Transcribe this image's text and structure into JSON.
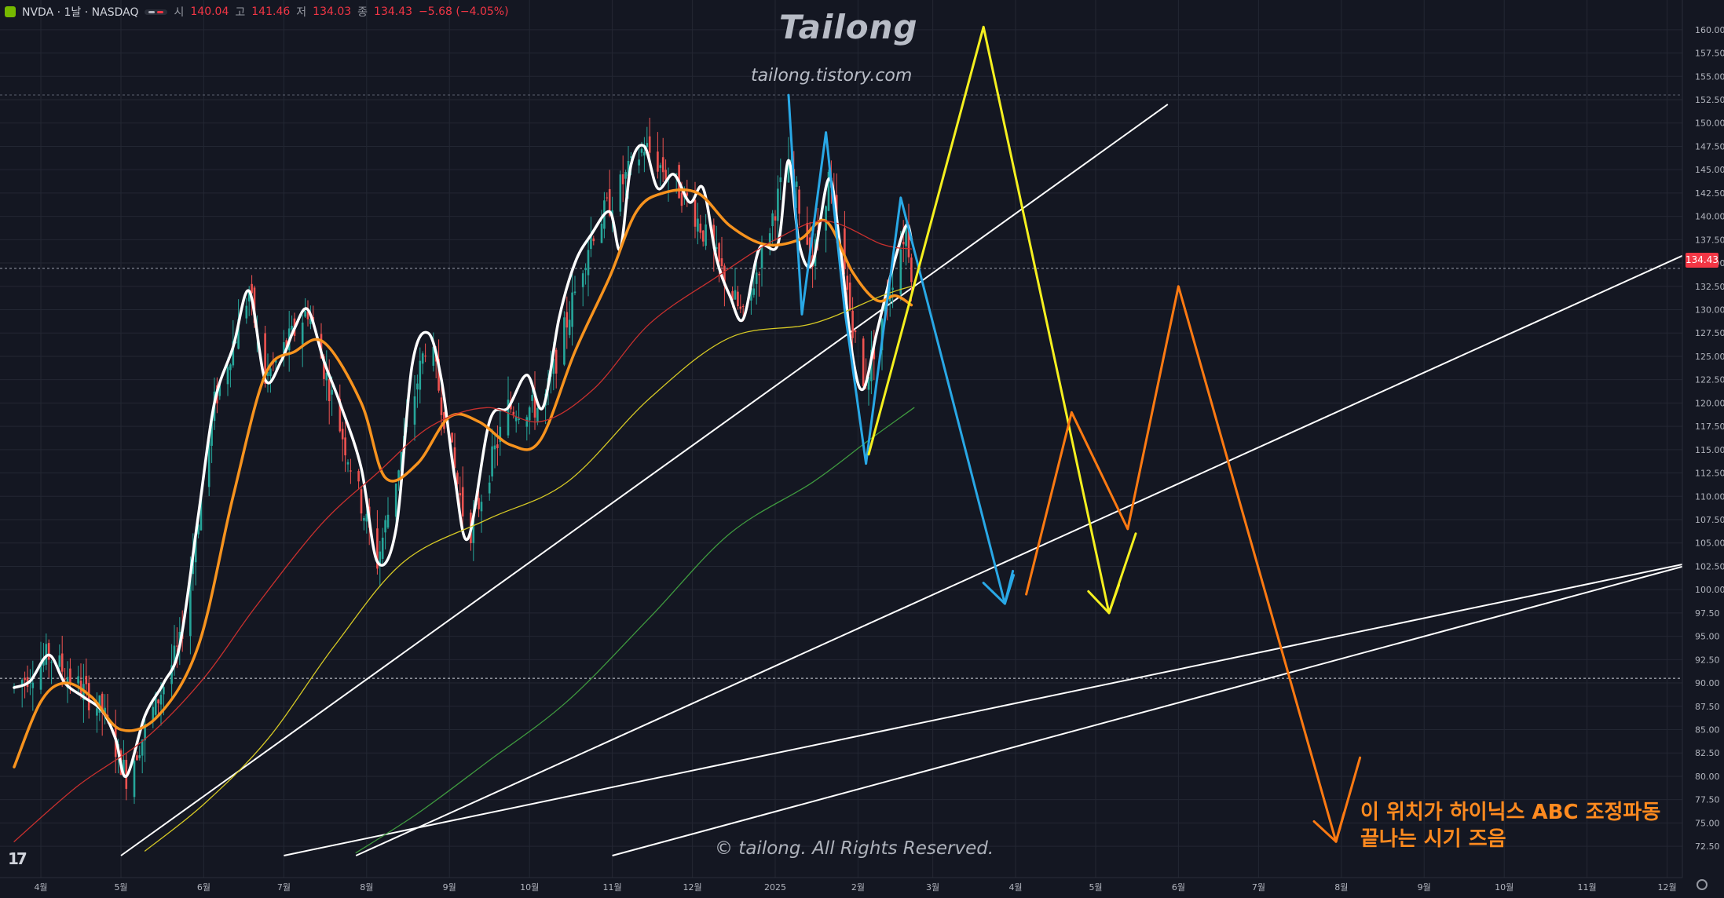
{
  "header": {
    "symbol": "NVDA · 1날 · NASDAQ",
    "o_label": "시",
    "o_value": "140.04",
    "h_label": "고",
    "h_value": "141.46",
    "l_label": "저",
    "l_value": "134.03",
    "c_label": "종",
    "c_value": "134.43",
    "change": "−5.68 (−4.05%)"
  },
  "watermark": {
    "title": "Tailong",
    "url": "tailong.tistory.com",
    "copyright": "© tailong. All Rights Reserved."
  },
  "annotation": {
    "line1": "이 위치가 하이닉스 ABC 조정파동",
    "line2": "끝나는 시기 즈음"
  },
  "last_price_label": "134.43",
  "colors": {
    "background": "#141722",
    "grid": "#232733",
    "axis_text": "#b2b5be",
    "up_candle": "#26a69a",
    "down_candle": "#ef5350",
    "ema_fast": "#ffffff",
    "ema_slow": "#f7931e",
    "ma_red": "#c8302e",
    "ma_yellow": "#d6c925",
    "ma_green": "#3f9a3f",
    "wave_blue": "#29a8e6",
    "wave_yellow": "#f5f01f",
    "wave_orange": "#ff7a12",
    "trendline": "#ffffff"
  },
  "icons": [
    "nvidia-logo-icon",
    "visibility-icon",
    "tradingview-logo-icon",
    "settings-gear-icon"
  ],
  "chart_data": {
    "type": "line",
    "xlabel": "",
    "ylabel": "",
    "y_ticks": [
      "72.50",
      "75.00",
      "77.50",
      "80.00",
      "82.50",
      "85.00",
      "87.50",
      "90.00",
      "92.50",
      "95.00",
      "97.50",
      "100.00",
      "102.50",
      "105.00",
      "107.50",
      "110.00",
      "112.50",
      "115.00",
      "117.50",
      "120.00",
      "122.50",
      "125.00",
      "127.50",
      "130.00",
      "132.50",
      "135.00",
      "137.50",
      "140.00",
      "142.50",
      "145.00",
      "147.50",
      "150.00",
      "152.50",
      "155.00",
      "157.50",
      "160.00"
    ],
    "ylim": [
      71.5,
      161.5
    ],
    "x_ticks": [
      {
        "label": "4월",
        "x": "2024-04-01"
      },
      {
        "label": "5월",
        "x": "2024-05-01"
      },
      {
        "label": "6월",
        "x": "2024-06-01"
      },
      {
        "label": "7월",
        "x": "2024-07-01"
      },
      {
        "label": "8월",
        "x": "2024-08-01"
      },
      {
        "label": "9월",
        "x": "2024-09-01"
      },
      {
        "label": "10월",
        "x": "2024-10-01"
      },
      {
        "label": "11월",
        "x": "2024-11-01"
      },
      {
        "label": "12월",
        "x": "2024-12-01"
      },
      {
        "label": "2025",
        "x": "2025-01-01"
      },
      {
        "label": "2월",
        "x": "2025-02-01"
      },
      {
        "label": "3월",
        "x": "2025-03-01"
      },
      {
        "label": "4월",
        "x": "2025-04-01"
      },
      {
        "label": "5월",
        "x": "2025-05-01"
      },
      {
        "label": "6월",
        "x": "2025-06-01"
      },
      {
        "label": "7월",
        "x": "2025-07-01"
      },
      {
        "label": "8월",
        "x": "2025-08-01"
      },
      {
        "label": "9월",
        "x": "2025-09-01"
      },
      {
        "label": "10월",
        "x": "2025-10-01"
      },
      {
        "label": "11월",
        "x": "2025-11-01"
      },
      {
        "label": "12월",
        "x": "2025-12-01"
      }
    ],
    "horizontal_levels": [
      {
        "name": "last-price",
        "y": 134.43
      },
      {
        "name": "dotted-level",
        "y": 90.5
      },
      {
        "name": "high-level",
        "y": 153.0
      }
    ],
    "series": [
      {
        "name": "",
        "role": "price-smoothed",
        "color_key": "ema_fast",
        "width": 3.5,
        "points": [
          [
            "2024-03-22",
            89.5
          ],
          [
            "2024-03-28",
            90.2
          ],
          [
            "2024-04-04",
            93.0
          ],
          [
            "2024-04-10",
            90.0
          ],
          [
            "2024-04-17",
            88.5
          ],
          [
            "2024-04-24",
            87.0
          ],
          [
            "2024-04-29",
            84.0
          ],
          [
            "2024-05-03",
            80.0
          ],
          [
            "2024-05-10",
            86.5
          ],
          [
            "2024-05-17",
            90.0
          ],
          [
            "2024-05-23",
            94.0
          ],
          [
            "2024-05-30",
            108.0
          ],
          [
            "2024-06-05",
            120.0
          ],
          [
            "2024-06-12",
            126.0
          ],
          [
            "2024-06-18",
            132.0
          ],
          [
            "2024-06-24",
            122.5
          ],
          [
            "2024-06-30",
            124.5
          ],
          [
            "2024-07-05",
            128.0
          ],
          [
            "2024-07-10",
            130.0
          ],
          [
            "2024-07-16",
            124.5
          ],
          [
            "2024-07-22",
            120.0
          ],
          [
            "2024-07-30",
            113.0
          ],
          [
            "2024-08-05",
            103.0
          ],
          [
            "2024-08-12",
            106.5
          ],
          [
            "2024-08-18",
            124.0
          ],
          [
            "2024-08-24",
            127.5
          ],
          [
            "2024-08-29",
            122.5
          ],
          [
            "2024-09-03",
            112.0
          ],
          [
            "2024-09-08",
            105.5
          ],
          [
            "2024-09-16",
            118.0
          ],
          [
            "2024-09-23",
            119.5
          ],
          [
            "2024-09-30",
            123.0
          ],
          [
            "2024-10-06",
            119.5
          ],
          [
            "2024-10-12",
            129.0
          ],
          [
            "2024-10-18",
            135.0
          ],
          [
            "2024-10-24",
            138.0
          ],
          [
            "2024-10-31",
            140.5
          ],
          [
            "2024-11-04",
            136.5
          ],
          [
            "2024-11-08",
            145.5
          ],
          [
            "2024-11-13",
            147.5
          ],
          [
            "2024-11-18",
            143.0
          ],
          [
            "2024-11-24",
            144.5
          ],
          [
            "2024-11-30",
            141.5
          ],
          [
            "2024-12-05",
            143.0
          ],
          [
            "2024-12-10",
            135.5
          ],
          [
            "2024-12-15",
            131.5
          ],
          [
            "2024-12-20",
            129.0
          ],
          [
            "2024-12-26",
            136.5
          ],
          [
            "2025-01-02",
            137.0
          ],
          [
            "2025-01-06",
            146.0
          ],
          [
            "2025-01-10",
            137.0
          ],
          [
            "2025-01-15",
            135.0
          ],
          [
            "2025-01-21",
            144.0
          ],
          [
            "2025-01-25",
            137.5
          ],
          [
            "2025-01-30",
            125.0
          ],
          [
            "2025-02-03",
            121.5
          ],
          [
            "2025-02-08",
            127.5
          ],
          [
            "2025-02-14",
            134.5
          ],
          [
            "2025-02-19",
            139.0
          ],
          [
            "2025-02-21",
            137.5
          ]
        ]
      },
      {
        "name": "",
        "role": "price-smoothed-slow",
        "color_key": "ema_slow",
        "width": 3.5,
        "points": [
          [
            "2024-03-22",
            81.0
          ],
          [
            "2024-04-01",
            88.0
          ],
          [
            "2024-04-10",
            90.0
          ],
          [
            "2024-04-20",
            88.5
          ],
          [
            "2024-05-01",
            85.0
          ],
          [
            "2024-05-15",
            86.5
          ],
          [
            "2024-05-30",
            94.0
          ],
          [
            "2024-06-12",
            110.0
          ],
          [
            "2024-06-24",
            123.0
          ],
          [
            "2024-07-05",
            125.5
          ],
          [
            "2024-07-16",
            126.5
          ],
          [
            "2024-07-30",
            120.0
          ],
          [
            "2024-08-08",
            112.0
          ],
          [
            "2024-08-20",
            113.5
          ],
          [
            "2024-09-01",
            118.5
          ],
          [
            "2024-09-12",
            118.0
          ],
          [
            "2024-09-24",
            115.5
          ],
          [
            "2024-10-05",
            116.0
          ],
          [
            "2024-10-18",
            125.5
          ],
          [
            "2024-10-31",
            133.5
          ],
          [
            "2024-11-10",
            140.5
          ],
          [
            "2024-11-20",
            142.5
          ],
          [
            "2024-12-03",
            142.5
          ],
          [
            "2024-12-15",
            139.0
          ],
          [
            "2024-12-28",
            137.0
          ],
          [
            "2025-01-10",
            137.5
          ],
          [
            "2025-01-20",
            139.5
          ],
          [
            "2025-01-30",
            134.0
          ],
          [
            "2025-02-08",
            131.0
          ],
          [
            "2025-02-15",
            131.5
          ],
          [
            "2025-02-21",
            130.5
          ]
        ]
      },
      {
        "name": "",
        "role": "moving-average",
        "color_key": "ma_red",
        "width": 1.3,
        "points": [
          [
            "2024-03-22",
            73.0
          ],
          [
            "2024-04-15",
            79.0
          ],
          [
            "2024-05-10",
            84.0
          ],
          [
            "2024-06-01",
            90.5
          ],
          [
            "2024-06-20",
            98.0
          ],
          [
            "2024-07-15",
            107.0
          ],
          [
            "2024-08-05",
            112.5
          ],
          [
            "2024-08-25",
            117.5
          ],
          [
            "2024-09-15",
            119.5
          ],
          [
            "2024-10-05",
            118.0
          ],
          [
            "2024-10-25",
            121.5
          ],
          [
            "2024-11-15",
            128.5
          ],
          [
            "2024-12-10",
            133.5
          ],
          [
            "2025-01-01",
            137.5
          ],
          [
            "2025-01-20",
            139.5
          ],
          [
            "2025-02-10",
            137.0
          ],
          [
            "2025-02-21",
            136.5
          ]
        ]
      },
      {
        "name": "",
        "role": "moving-average",
        "color_key": "ma_yellow",
        "width": 1.3,
        "points": [
          [
            "2024-05-10",
            72.0
          ],
          [
            "2024-06-01",
            77.0
          ],
          [
            "2024-06-25",
            84.0
          ],
          [
            "2024-07-20",
            94.0
          ],
          [
            "2024-08-15",
            103.0
          ],
          [
            "2024-09-15",
            107.5
          ],
          [
            "2024-10-15",
            111.5
          ],
          [
            "2024-11-15",
            120.5
          ],
          [
            "2024-12-15",
            127.0
          ],
          [
            "2025-01-15",
            128.5
          ],
          [
            "2025-02-10",
            131.5
          ],
          [
            "2025-02-21",
            132.5
          ]
        ]
      },
      {
        "name": "",
        "role": "moving-average",
        "color_key": "ma_green",
        "width": 1.3,
        "points": [
          [
            "2024-07-28",
            71.8
          ],
          [
            "2024-08-20",
            76.0
          ],
          [
            "2024-09-15",
            81.5
          ],
          [
            "2024-10-15",
            88.0
          ],
          [
            "2024-11-15",
            97.0
          ],
          [
            "2024-12-15",
            106.0
          ],
          [
            "2025-01-15",
            111.5
          ],
          [
            "2025-02-05",
            116.0
          ],
          [
            "2025-02-22",
            119.5
          ]
        ]
      },
      {
        "name": "",
        "role": "wave-projection",
        "color_key": "wave_blue",
        "width": 3,
        "points": [
          [
            "2025-01-06",
            153.0
          ],
          [
            "2025-01-11",
            129.5
          ],
          [
            "2025-01-20",
            149.0
          ],
          [
            "2025-01-27",
            130.0
          ],
          [
            "2025-02-04",
            113.5
          ],
          [
            "2025-02-17",
            142.0
          ],
          [
            "2025-03-28",
            98.5
          ],
          [
            "2025-03-31",
            102.0
          ]
        ],
        "arrow_end": [
          "2025-03-28",
          98.5
        ]
      },
      {
        "name": "",
        "role": "wave-projection",
        "color_key": "wave_yellow",
        "width": 3,
        "points": [
          [
            "2025-02-05",
            114.5
          ],
          [
            "2025-03-20",
            160.3
          ],
          [
            "2025-05-06",
            97.5
          ],
          [
            "2025-05-16",
            106.0
          ]
        ],
        "arrow_end": [
          "2025-05-06",
          97.5
        ]
      },
      {
        "name": "",
        "role": "wave-projection",
        "color_key": "wave_orange",
        "width": 3,
        "points": [
          [
            "2025-04-05",
            99.5
          ],
          [
            "2025-04-22",
            119.0
          ],
          [
            "2025-05-13",
            106.5
          ],
          [
            "2025-06-01",
            132.5
          ],
          [
            "2025-07-30",
            73.0
          ],
          [
            "2025-08-08",
            82.0
          ]
        ],
        "arrow_end": [
          "2025-07-30",
          73.0
        ]
      }
    ],
    "trendlines": [
      {
        "from": [
          "2024-05-01",
          71.5
        ],
        "to": [
          "2025-05-28",
          152.0
        ]
      },
      {
        "from": [
          "2024-07-28",
          71.5
        ],
        "to": [
          "2025-12-20",
          137.5
        ]
      },
      {
        "from": [
          "2024-07-01",
          71.5
        ],
        "to": [
          "2025-12-20",
          103.5
        ]
      },
      {
        "from": [
          "2024-11-01",
          71.5
        ],
        "to": [
          "2025-12-20",
          103.5
        ],
        "hidden": true
      }
    ],
    "candles": {
      "start": "2024-03-22",
      "end": "2025-02-21",
      "anchors": [
        [
          "2024-03-22",
          89.5
        ],
        [
          "2024-04-04",
          93.0
        ],
        [
          "2024-04-24",
          87.0
        ],
        [
          "2024-05-03",
          80.0
        ],
        [
          "2024-05-23",
          94.0
        ],
        [
          "2024-06-05",
          120.0
        ],
        [
          "2024-06-18",
          132.0
        ],
        [
          "2024-06-24",
          122.5
        ],
        [
          "2024-07-10",
          130.0
        ],
        [
          "2024-08-05",
          103.0
        ],
        [
          "2024-08-24",
          127.5
        ],
        [
          "2024-09-08",
          105.5
        ],
        [
          "2024-09-23",
          119.5
        ],
        [
          "2024-10-06",
          119.5
        ],
        [
          "2024-10-24",
          138.0
        ],
        [
          "2024-11-13",
          147.5
        ],
        [
          "2024-11-30",
          141.5
        ],
        [
          "2024-12-20",
          129.0
        ],
        [
          "2025-01-06",
          146.0
        ],
        [
          "2025-01-15",
          135.0
        ],
        [
          "2025-01-21",
          144.0
        ],
        [
          "2025-02-03",
          121.5
        ],
        [
          "2025-02-19",
          139.0
        ],
        [
          "2025-02-21",
          134.43
        ]
      ]
    }
  }
}
